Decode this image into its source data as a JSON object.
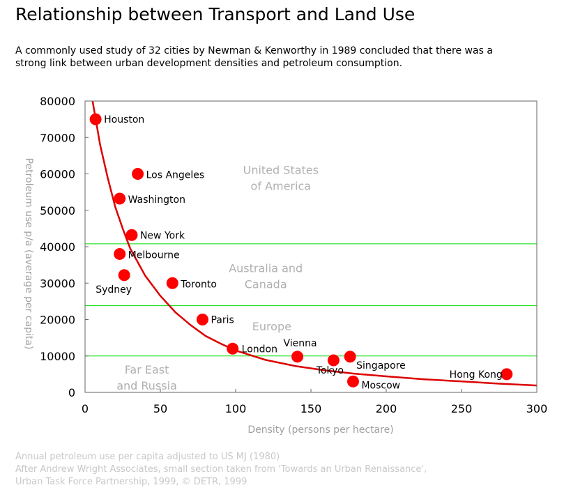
{
  "title": "Relationship between Transport and Land Use",
  "subtitle": "A commonly used study of 32 cities by Newman & Kenworthy in 1989 concluded that there was a strong link between urban development densities and petroleum consumption.",
  "credits": [
    "Annual petroleum use per capita adjusted to US MJ (1980)",
    "After Andrew Wright Associates, small section taken from 'Towards an Urban Renaissance',",
    "Urban Task Force Partnership, 1999, © DETR, 1999"
  ],
  "chart_data": {
    "type": "scatter",
    "xlabel": "Density (persons per hectare)",
    "ylabel": "Petroleum use p/a (average per capita)",
    "xlim": [
      0,
      300
    ],
    "ylim": [
      0,
      80000
    ],
    "x_ticks": [
      "0",
      "50",
      "100",
      "150",
      "200",
      "250",
      "300"
    ],
    "y_ticks": [
      "0",
      "10000",
      "20000",
      "30000",
      "40000",
      "50000",
      "60000",
      "70000",
      "80000"
    ],
    "points": [
      {
        "label": "Houston",
        "x": 7,
        "y": 75000
      },
      {
        "label": "Los Angeles",
        "x": 35,
        "y": 60000
      },
      {
        "label": "Washington",
        "x": 23,
        "y": 53200
      },
      {
        "label": "New York",
        "x": 31,
        "y": 43200
      },
      {
        "label": "Melbourne",
        "x": 23,
        "y": 38000
      },
      {
        "label": "Sydney",
        "x": 26,
        "y": 32200
      },
      {
        "label": "Toronto",
        "x": 58,
        "y": 30000
      },
      {
        "label": "Paris",
        "x": 78,
        "y": 20000
      },
      {
        "label": "London",
        "x": 98,
        "y": 12000
      },
      {
        "label": "Vienna",
        "x": 141,
        "y": 9800
      },
      {
        "label": "Tokyo",
        "x": 165,
        "y": 8800
      },
      {
        "label": "Singapore",
        "x": 176,
        "y": 9800
      },
      {
        "label": "Moscow",
        "x": 178,
        "y": 3000
      },
      {
        "label": "Hong Kong",
        "x": 280,
        "y": 5000
      }
    ],
    "trend_curve": [
      [
        5,
        80000
      ],
      [
        10,
        68000
      ],
      [
        15,
        59000
      ],
      [
        20,
        51000
      ],
      [
        25,
        45000
      ],
      [
        30,
        39500
      ],
      [
        40,
        32000
      ],
      [
        50,
        26500
      ],
      [
        60,
        22000
      ],
      [
        70,
        18500
      ],
      [
        80,
        15500
      ],
      [
        90,
        13400
      ],
      [
        100,
        11500
      ],
      [
        120,
        8900
      ],
      [
        140,
        7200
      ],
      [
        160,
        6000
      ],
      [
        180,
        5100
      ],
      [
        200,
        4400
      ],
      [
        225,
        3600
      ],
      [
        250,
        3000
      ],
      [
        275,
        2400
      ],
      [
        300,
        1900
      ]
    ],
    "band_lines": [
      40800,
      23800,
      10000
    ],
    "regions": [
      {
        "name": "United States of America",
        "lines": [
          "United States",
          "of America"
        ],
        "x": 130,
        "y": 60000
      },
      {
        "name": "Australia and Canada",
        "lines": [
          "Australia and",
          "Canada"
        ],
        "x": 120,
        "y": 33000
      },
      {
        "name": "Europe",
        "lines": [
          "Europe"
        ],
        "x": 124,
        "y": 17000
      },
      {
        "name": "Far East and Russia",
        "lines": [
          "Far East",
          "and Russia"
        ],
        "x": 41,
        "y": 5200
      }
    ],
    "point_color": "#ff0000",
    "curve_color": "#dd0000",
    "band_color": "#00dd00",
    "region_label_color": "#b0b0b0",
    "grid": false
  }
}
